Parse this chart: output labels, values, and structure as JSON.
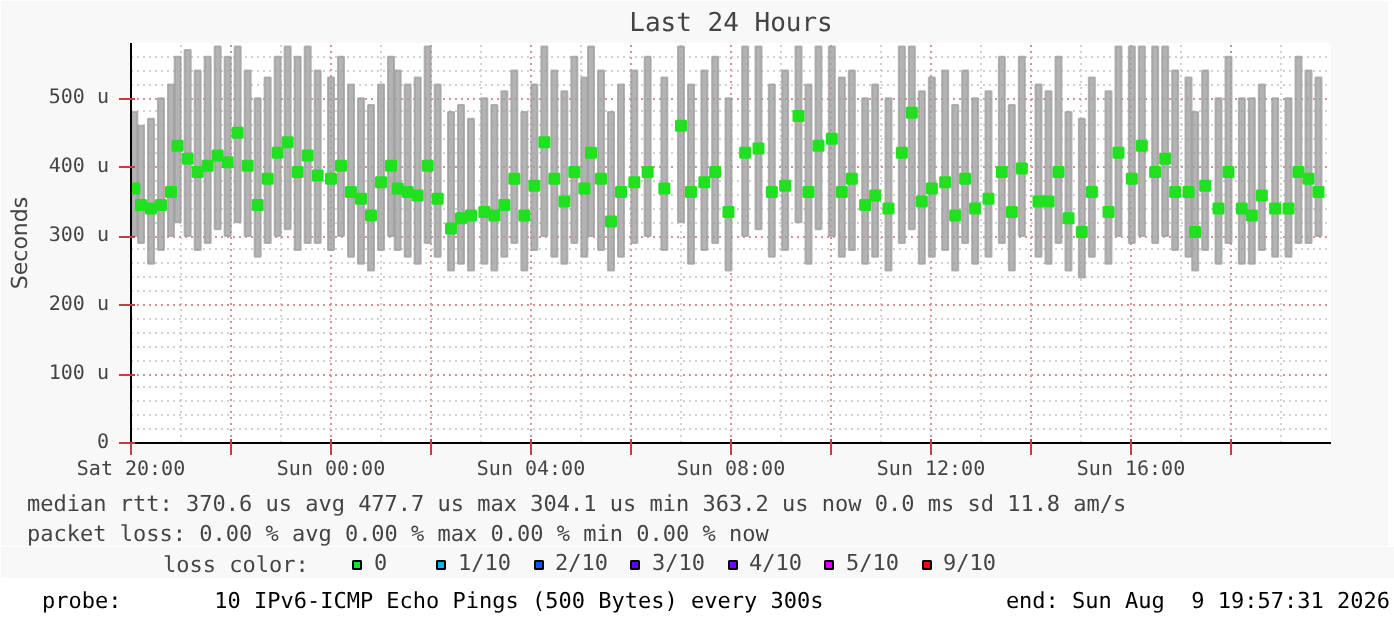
{
  "chart_data": {
    "type": "scatter",
    "title": "Last 24 Hours",
    "ylabel": "Seconds",
    "legend_title": "loss color:",
    "xlim": [
      "2026-08-08T20:00",
      "2026-08-09T20:00"
    ],
    "ylim": [
      0,
      580
    ],
    "xticks": [
      {
        "value": "2026-08-08T20:00",
        "label": "Sat 20:00"
      },
      {
        "value": "2026-08-08T22:00",
        "label": null
      },
      {
        "value": "2026-08-09T00:00",
        "label": "Sun 00:00"
      },
      {
        "value": "2026-08-09T02:00",
        "label": null
      },
      {
        "value": "2026-08-09T04:00",
        "label": "Sun 04:00"
      },
      {
        "value": "2026-08-09T06:00",
        "label": null
      },
      {
        "value": "2026-08-09T08:00",
        "label": "Sun 08:00"
      },
      {
        "value": "2026-08-09T10:00",
        "label": null
      },
      {
        "value": "2026-08-09T12:00",
        "label": "Sun 12:00"
      },
      {
        "value": "2026-08-09T14:00",
        "label": null
      },
      {
        "value": "2026-08-09T16:00",
        "label": "Sun 16:00"
      },
      {
        "value": "2026-08-09T18:00",
        "label": null
      }
    ],
    "yticks": [
      0,
      {
        "value": 100,
        "label": "100 u"
      },
      {
        "value": 200,
        "label": "200 u"
      },
      {
        "value": 300,
        "label": "300 u"
      },
      {
        "value": 400,
        "label": "400 u"
      },
      {
        "value": 500,
        "label": "500 u"
      }
    ],
    "grid": true,
    "legend": "bottom",
    "marker": "square",
    "series": [
      {
        "name": "0",
        "color": "#20e020",
        "x": [
          "2026-08-08T20:04",
          "2026-08-08T20:12",
          "2026-08-08T20:24",
          "2026-08-08T20:36",
          "2026-08-08T20:48",
          "2026-08-08T20:56",
          "2026-08-08T21:08",
          "2026-08-08T21:20",
          "2026-08-08T21:32",
          "2026-08-08T21:44",
          "2026-08-08T21:56",
          "2026-08-08T22:08",
          "2026-08-08T22:20",
          "2026-08-08T22:32",
          "2026-08-08T22:44",
          "2026-08-08T22:56",
          "2026-08-08T23:08",
          "2026-08-08T23:20",
          "2026-08-08T23:32",
          "2026-08-08T23:44",
          "2026-08-09T00:00",
          "2026-08-09T00:12",
          "2026-08-09T00:24",
          "2026-08-09T00:36",
          "2026-08-09T00:48",
          "2026-08-09T01:00",
          "2026-08-09T01:12",
          "2026-08-09T01:20",
          "2026-08-09T01:32",
          "2026-08-09T01:44",
          "2026-08-09T01:56",
          "2026-08-09T02:08",
          "2026-08-09T02:24",
          "2026-08-09T02:36",
          "2026-08-09T02:48",
          "2026-08-09T03:04",
          "2026-08-09T03:16",
          "2026-08-09T03:28",
          "2026-08-09T03:40",
          "2026-08-09T03:52",
          "2026-08-09T04:04",
          "2026-08-09T04:16",
          "2026-08-09T04:28",
          "2026-08-09T04:40",
          "2026-08-09T04:52",
          "2026-08-09T05:04",
          "2026-08-09T05:12",
          "2026-08-09T05:24",
          "2026-08-09T05:36",
          "2026-08-09T05:48",
          "2026-08-09T06:04",
          "2026-08-09T06:20",
          "2026-08-09T06:40",
          "2026-08-09T07:00",
          "2026-08-09T07:12",
          "2026-08-09T07:28",
          "2026-08-09T07:41",
          "2026-08-09T07:57",
          "2026-08-09T08:17",
          "2026-08-09T08:33",
          "2026-08-09T08:49",
          "2026-08-09T09:05",
          "2026-08-09T09:21",
          "2026-08-09T09:33",
          "2026-08-09T09:45",
          "2026-08-09T10:01",
          "2026-08-09T10:13",
          "2026-08-09T10:25",
          "2026-08-09T10:41",
          "2026-08-09T10:53",
          "2026-08-09T11:09",
          "2026-08-09T11:25",
          "2026-08-09T11:37",
          "2026-08-09T11:49",
          "2026-08-09T12:01",
          "2026-08-09T12:17",
          "2026-08-09T12:29",
          "2026-08-09T12:41",
          "2026-08-09T12:53",
          "2026-08-09T13:09",
          "2026-08-09T13:25",
          "2026-08-09T13:37",
          "2026-08-09T13:49",
          "2026-08-09T14:09",
          "2026-08-09T14:21",
          "2026-08-09T14:33",
          "2026-08-09T14:45",
          "2026-08-09T15:01",
          "2026-08-09T15:13",
          "2026-08-09T15:33",
          "2026-08-09T15:45",
          "2026-08-09T16:01",
          "2026-08-09T16:13",
          "2026-08-09T16:29",
          "2026-08-09T16:41",
          "2026-08-09T16:53",
          "2026-08-09T17:09",
          "2026-08-09T17:17",
          "2026-08-09T17:29",
          "2026-08-09T17:45",
          "2026-08-09T17:57",
          "2026-08-09T18:13",
          "2026-08-09T18:25",
          "2026-08-09T18:37",
          "2026-08-09T18:53",
          "2026-08-09T19:09",
          "2026-08-09T19:21",
          "2026-08-09T19:33",
          "2026-08-09T19:45"
        ],
        "values": [
          369,
          345,
          340,
          345,
          364,
          431,
          412,
          393,
          402,
          417,
          407,
          450,
          402,
          345,
          383,
          421,
          436,
          393,
          417,
          388,
          383,
          402,
          364,
          354,
          330,
          378,
          402,
          369,
          364,
          359,
          402,
          354,
          311,
          326,
          330,
          335,
          330,
          345,
          383,
          330,
          373,
          436,
          383,
          350,
          393,
          369,
          421,
          383,
          321,
          364,
          378,
          393,
          369,
          460,
          364,
          378,
          393,
          335,
          421,
          427,
          364,
          373,
          474,
          364,
          431,
          441,
          364,
          383,
          345,
          359,
          340,
          421,
          479,
          350,
          369,
          378,
          330,
          383,
          340,
          354,
          393,
          335,
          398,
          350,
          350,
          393,
          326,
          306,
          364,
          335,
          421,
          383,
          431,
          393,
          412,
          364,
          364,
          306,
          373,
          340,
          393,
          340,
          330,
          359,
          340,
          340,
          393,
          383,
          364
        ],
        "lower": [
          300,
          290,
          260,
          280,
          300,
          320,
          300,
          280,
          290,
          310,
          300,
          320,
          300,
          270,
          290,
          300,
          310,
          280,
          290,
          290,
          280,
          300,
          270,
          260,
          250,
          280,
          300,
          280,
          270,
          260,
          290,
          270,
          250,
          260,
          250,
          260,
          250,
          270,
          290,
          250,
          280,
          300,
          270,
          260,
          290,
          270,
          300,
          280,
          250,
          270,
          290,
          300,
          280,
          320,
          260,
          280,
          290,
          250,
          300,
          310,
          270,
          280,
          320,
          260,
          310,
          300,
          270,
          280,
          260,
          270,
          250,
          290,
          310,
          260,
          270,
          280,
          250,
          290,
          260,
          270,
          290,
          250,
          300,
          270,
          260,
          290,
          250,
          240,
          270,
          260,
          300,
          290,
          300,
          290,
          300,
          280,
          270,
          250,
          280,
          260,
          290,
          260,
          260,
          280,
          270,
          270,
          290,
          290,
          300
        ],
        "upper": [
          480,
          460,
          470,
          500,
          520,
          560,
          570,
          540,
          560,
          575,
          560,
          575,
          540,
          500,
          530,
          560,
          575,
          560,
          575,
          540,
          530,
          560,
          520,
          500,
          490,
          520,
          560,
          540,
          520,
          530,
          575,
          520,
          480,
          490,
          470,
          500,
          490,
          510,
          540,
          480,
          520,
          575,
          540,
          510,
          560,
          530,
          575,
          540,
          480,
          520,
          540,
          560,
          530,
          575,
          520,
          540,
          560,
          500,
          575,
          575,
          520,
          540,
          575,
          520,
          575,
          575,
          530,
          540,
          500,
          520,
          500,
          575,
          575,
          510,
          530,
          540,
          490,
          540,
          500,
          510,
          560,
          490,
          560,
          520,
          510,
          560,
          480,
          470,
          530,
          510,
          575,
          575,
          575,
          575,
          575,
          540,
          530,
          480,
          540,
          500,
          560,
          500,
          500,
          520,
          500,
          500,
          560,
          540,
          530
        ]
      },
      {
        "name": "1/10",
        "color": "#00b8ff"
      },
      {
        "name": "2/10",
        "color": "#0059ff"
      },
      {
        "name": "3/10",
        "color": "#5e00ff"
      },
      {
        "name": "4/10",
        "color": "#7e00ff"
      },
      {
        "name": "5/10",
        "color": "#dd00ff"
      },
      {
        "name": "9/10",
        "color": "#ff0000"
      }
    ],
    "annotations": [
      "median rtt:  370.6 us avg  477.7 us max  304.1 us min  363.2 us now  0.0 ms sd  11.8   am/s",
      "packet loss: 0.00 % avg  0.00 % max  0.00 % min  0.00 % now",
      "probe:       10 IPv6-ICMP Echo Pings (500 Bytes) every 300s",
      "end: Sun Aug  9 19:57:31 2026"
    ]
  }
}
